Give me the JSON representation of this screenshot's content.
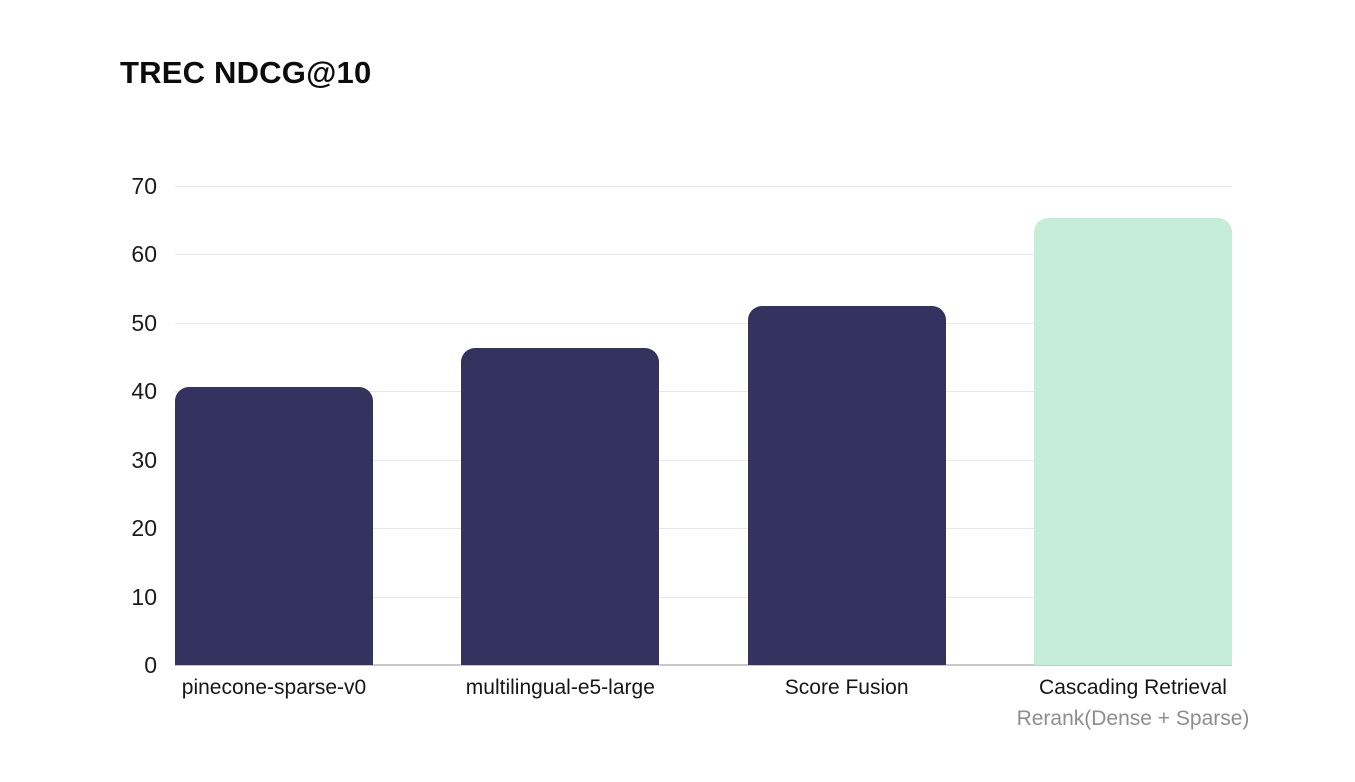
{
  "title": "TREC NDCG@10",
  "chart_data": {
    "type": "bar",
    "title": "TREC NDCG@10",
    "categories": [
      "pinecone-sparse-v0",
      "multilingual-e5-large",
      "Score Fusion",
      "Cascading Retrieval"
    ],
    "sublabels": [
      "",
      "",
      "",
      "Rerank(Dense + Sparse)"
    ],
    "values": [
      40.6,
      46.3,
      52.4,
      65.3
    ],
    "bar_colors": [
      "#34325e",
      "#34325e",
      "#34325e",
      "#c6edd8"
    ],
    "yticks": [
      0,
      10,
      20,
      30,
      40,
      50,
      60,
      70
    ],
    "ylim": [
      0,
      70
    ],
    "xlabel": "",
    "ylabel": "",
    "grid": "horizontal",
    "legend": "none",
    "colors": {
      "navy_bar": "#34325e",
      "mint_bar": "#c6edd8",
      "gridline": "#e7e7e7",
      "axis_line": "#c9c9c9",
      "title_text": "#0c0c0c",
      "tick_text": "#1b1b1b",
      "label_text": "#161616",
      "sublabel_text": "#8e8e8e",
      "background": "#ffffff"
    }
  }
}
